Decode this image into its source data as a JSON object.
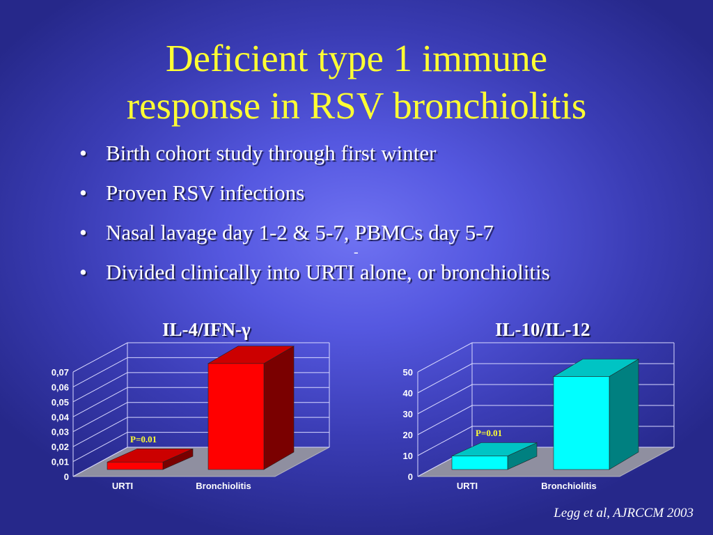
{
  "slide": {
    "title_line1": "Deficient type 1 immune",
    "title_line2": "response in RSV bronchiolitis",
    "bullets": [
      "Birth cohort study through first winter",
      "Proven RSV infections",
      "Nasal lavage day 1-2 & 5-7, PBMCs day 5-7",
      "Divided clinically into URTI alone, or bronchiolitis"
    ],
    "stray_mark": "-",
    "citation": "Legg et al, AJRCCM 2003",
    "colors": {
      "title": "#ffff33",
      "text": "#ffffff",
      "annotation": "#ffff33"
    }
  },
  "chart_data": [
    {
      "type": "bar",
      "style": "3d",
      "title": "IL-4/IFN-γ",
      "categories": [
        "URTI",
        "Bronchiolitis"
      ],
      "values": [
        0.005,
        0.071
      ],
      "ylim": [
        0,
        0.07
      ],
      "yticks": [
        "0",
        "0,01",
        "0,02",
        "0,03",
        "0,04",
        "0,05",
        "0,06",
        "0,07"
      ],
      "annotation": "P=0.01",
      "colors": {
        "front": "#ff0000",
        "top": "#cc0000",
        "side": "#7a0000"
      }
    },
    {
      "type": "bar",
      "style": "3d",
      "title": "IL-10/IL-12",
      "categories": [
        "URTI",
        "Bronchiolitis"
      ],
      "values": [
        6.5,
        44.5
      ],
      "ylim": [
        0,
        50
      ],
      "yticks": [
        "0",
        "10",
        "20",
        "30",
        "40",
        "50"
      ],
      "annotation": "P=0.01",
      "colors": {
        "front": "#00ffff",
        "top": "#00c4c4",
        "side": "#008080"
      }
    }
  ]
}
